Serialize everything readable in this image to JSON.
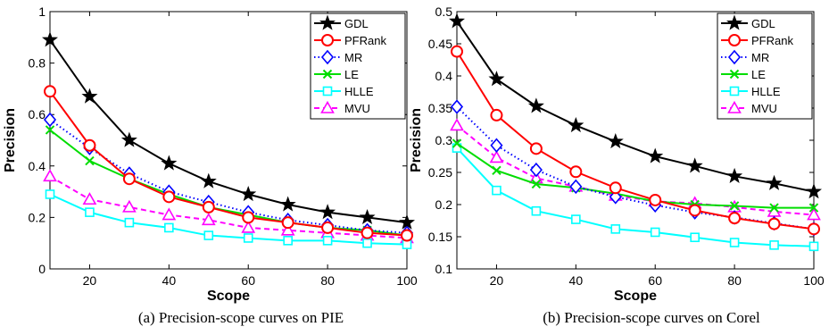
{
  "chart_data": [
    {
      "type": "line",
      "caption": "(a)  Precision-scope curves on PIE",
      "xlabel": "Scope",
      "ylabel": "Precision",
      "xlim": [
        10,
        100
      ],
      "ylim": [
        0,
        1
      ],
      "xticks": [
        20,
        40,
        60,
        80,
        100
      ],
      "yticks": [
        0,
        0.2,
        0.4,
        0.6,
        0.8,
        1
      ],
      "ytick_labels": [
        "0",
        "0.2",
        "0.4",
        "0.6",
        "0.8",
        "1"
      ],
      "legend_position": "top-right",
      "x": [
        10,
        20,
        30,
        40,
        50,
        60,
        70,
        80,
        90,
        100
      ],
      "series": [
        {
          "name": "GDL",
          "color": "#000000",
          "marker": "star",
          "dash": "solid",
          "values": [
            0.89,
            0.67,
            0.5,
            0.41,
            0.34,
            0.29,
            0.25,
            0.22,
            0.2,
            0.18
          ]
        },
        {
          "name": "PFRank",
          "color": "#ff0000",
          "marker": "circle",
          "dash": "solid",
          "values": [
            0.69,
            0.48,
            0.35,
            0.28,
            0.24,
            0.2,
            0.18,
            0.16,
            0.14,
            0.13
          ]
        },
        {
          "name": "MR",
          "color": "#0000ff",
          "marker": "diamond",
          "dash": "dotted",
          "values": [
            0.58,
            0.47,
            0.37,
            0.3,
            0.26,
            0.22,
            0.19,
            0.17,
            0.15,
            0.14
          ]
        },
        {
          "name": "LE",
          "color": "#00dd00",
          "marker": "x",
          "dash": "solid",
          "values": [
            0.54,
            0.42,
            0.35,
            0.29,
            0.24,
            0.21,
            0.18,
            0.16,
            0.15,
            0.13
          ]
        },
        {
          "name": "HLLE",
          "color": "#00ffff",
          "marker": "square",
          "dash": "solid",
          "values": [
            0.29,
            0.22,
            0.18,
            0.16,
            0.13,
            0.12,
            0.11,
            0.11,
            0.1,
            0.095
          ]
        },
        {
          "name": "MVU",
          "color": "#ff00ff",
          "marker": "triangle",
          "dash": "dashed",
          "values": [
            0.36,
            0.27,
            0.24,
            0.21,
            0.19,
            0.16,
            0.15,
            0.14,
            0.13,
            0.12
          ]
        }
      ]
    },
    {
      "type": "line",
      "caption": "(b)  Precision-scope curves on Corel",
      "xlabel": "Scope",
      "ylabel": "Precision",
      "xlim": [
        10,
        100
      ],
      "ylim": [
        0.1,
        0.5
      ],
      "xticks": [
        20,
        40,
        60,
        80,
        100
      ],
      "yticks": [
        0.1,
        0.15,
        0.2,
        0.25,
        0.3,
        0.35,
        0.4,
        0.45,
        0.5
      ],
      "ytick_labels": [
        "0.1",
        "0.15",
        "0.2",
        "0.25",
        "0.3",
        "0.35",
        "0.4",
        "0.45",
        "0.5"
      ],
      "legend_position": "top-right",
      "x": [
        10,
        20,
        30,
        40,
        50,
        60,
        70,
        80,
        90,
        100
      ],
      "series": [
        {
          "name": "GDL",
          "color": "#000000",
          "marker": "star",
          "dash": "solid",
          "values": [
            0.485,
            0.395,
            0.353,
            0.323,
            0.298,
            0.275,
            0.26,
            0.244,
            0.233,
            0.22
          ]
        },
        {
          "name": "PFRank",
          "color": "#ff0000",
          "marker": "circle",
          "dash": "solid",
          "values": [
            0.438,
            0.339,
            0.287,
            0.251,
            0.226,
            0.207,
            0.191,
            0.179,
            0.17,
            0.162
          ]
        },
        {
          "name": "MR",
          "color": "#0000ff",
          "marker": "diamond",
          "dash": "dotted",
          "values": [
            0.352,
            0.292,
            0.254,
            0.228,
            0.212,
            0.199,
            0.188,
            0.18,
            0.171,
            0.162
          ]
        },
        {
          "name": "LE",
          "color": "#00dd00",
          "marker": "x",
          "dash": "solid",
          "values": [
            0.295,
            0.253,
            0.232,
            0.226,
            0.217,
            0.205,
            0.2,
            0.198,
            0.195,
            0.195
          ]
        },
        {
          "name": "HLLE",
          "color": "#00ffff",
          "marker": "square",
          "dash": "solid",
          "values": [
            0.288,
            0.222,
            0.19,
            0.177,
            0.162,
            0.157,
            0.149,
            0.141,
            0.137,
            0.135
          ]
        },
        {
          "name": "MVU",
          "color": "#ff00ff",
          "marker": "triangle",
          "dash": "dashed",
          "values": [
            0.323,
            0.273,
            0.241,
            0.228,
            0.214,
            0.205,
            0.202,
            0.196,
            0.189,
            0.184
          ]
        }
      ]
    }
  ]
}
